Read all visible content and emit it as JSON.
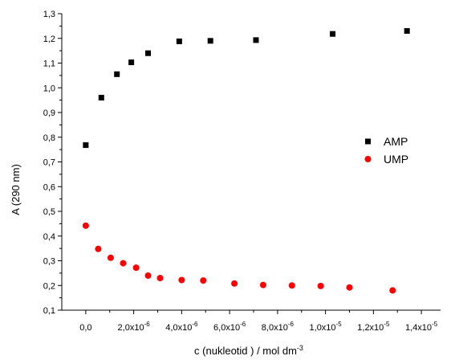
{
  "chart_data": {
    "type": "scatter",
    "title": "",
    "xlabel": "c (nukleotid ) / mol dm",
    "xlabel_sup": "-3",
    "ylabel": "A (290 nm)",
    "xlim": [
      -1e-06,
      1.48e-05
    ],
    "ylim": [
      0.1,
      1.3
    ],
    "grid": false,
    "legend_position": "right",
    "x_ticks": [
      {
        "value": 0,
        "mantissa": "0,0",
        "exp": ""
      },
      {
        "value": 2e-06,
        "mantissa": "2,0x10",
        "exp": "-6"
      },
      {
        "value": 4e-06,
        "mantissa": "4,0x10",
        "exp": "-6"
      },
      {
        "value": 6e-06,
        "mantissa": "6,0x10",
        "exp": "-6"
      },
      {
        "value": 8e-06,
        "mantissa": "8,0x10",
        "exp": "-6"
      },
      {
        "value": 1e-05,
        "mantissa": "1,0x10",
        "exp": "-5"
      },
      {
        "value": 1.2e-05,
        "mantissa": "1,2x10",
        "exp": "-5"
      },
      {
        "value": 1.4e-05,
        "mantissa": "1,4x10",
        "exp": "-5"
      }
    ],
    "y_ticks": [
      {
        "value": 0.1,
        "label": "0,1"
      },
      {
        "value": 0.2,
        "label": "0,2"
      },
      {
        "value": 0.3,
        "label": "0,3"
      },
      {
        "value": 0.4,
        "label": "0,4"
      },
      {
        "value": 0.5,
        "label": "0,5"
      },
      {
        "value": 0.6,
        "label": "0,6"
      },
      {
        "value": 0.7,
        "label": "0,7"
      },
      {
        "value": 0.8,
        "label": "0,8"
      },
      {
        "value": 0.9,
        "label": "0,9"
      },
      {
        "value": 1.0,
        "label": "1,0"
      },
      {
        "value": 1.1,
        "label": "1,1"
      },
      {
        "value": 1.2,
        "label": "1,2"
      },
      {
        "value": 1.3,
        "label": "1,3"
      }
    ],
    "series": [
      {
        "name": "AMP",
        "marker": "square",
        "color": "#000000",
        "x": [
          0.0,
          6.5e-07,
          1.3e-06,
          1.9e-06,
          2.6e-06,
          3.9e-06,
          5.2e-06,
          7.1e-06,
          1.03e-05,
          1.34e-05
        ],
        "y": [
          0.768,
          0.96,
          1.055,
          1.103,
          1.14,
          1.188,
          1.19,
          1.193,
          1.218,
          1.23
        ]
      },
      {
        "name": "UMP",
        "marker": "circle",
        "color": "#ff0000",
        "x": [
          0.0,
          5.2e-07,
          1.04e-06,
          1.56e-06,
          2.1e-06,
          2.6e-06,
          3.1e-06,
          4e-06,
          4.9e-06,
          6.2e-06,
          7.4e-06,
          8.6e-06,
          9.8e-06,
          1.1e-05,
          1.28e-05
        ],
        "y": [
          0.442,
          0.348,
          0.312,
          0.29,
          0.272,
          0.24,
          0.23,
          0.222,
          0.22,
          0.208,
          0.202,
          0.2,
          0.198,
          0.192,
          0.18
        ]
      }
    ]
  }
}
